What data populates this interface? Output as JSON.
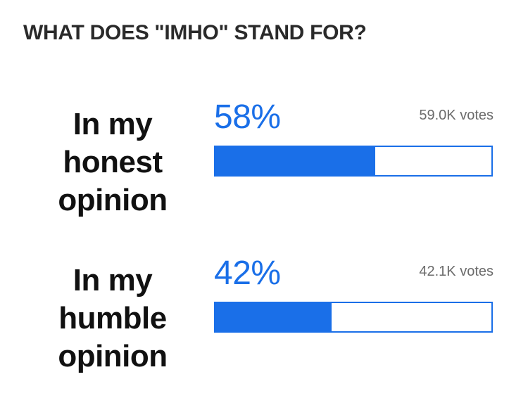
{
  "poll": {
    "question": "WHAT DOES \"IMHO\" STAND FOR?",
    "accent_color": "#1a6fe8",
    "options": [
      {
        "label_lines": [
          "In my",
          "honest",
          "opinion"
        ],
        "percent_label": "58%",
        "percent": 58,
        "votes": "59.0K votes"
      },
      {
        "label_lines": [
          "In my",
          "humble",
          "opinion"
        ],
        "percent_label": "42%",
        "percent": 42,
        "votes": "42.1K votes"
      }
    ]
  }
}
